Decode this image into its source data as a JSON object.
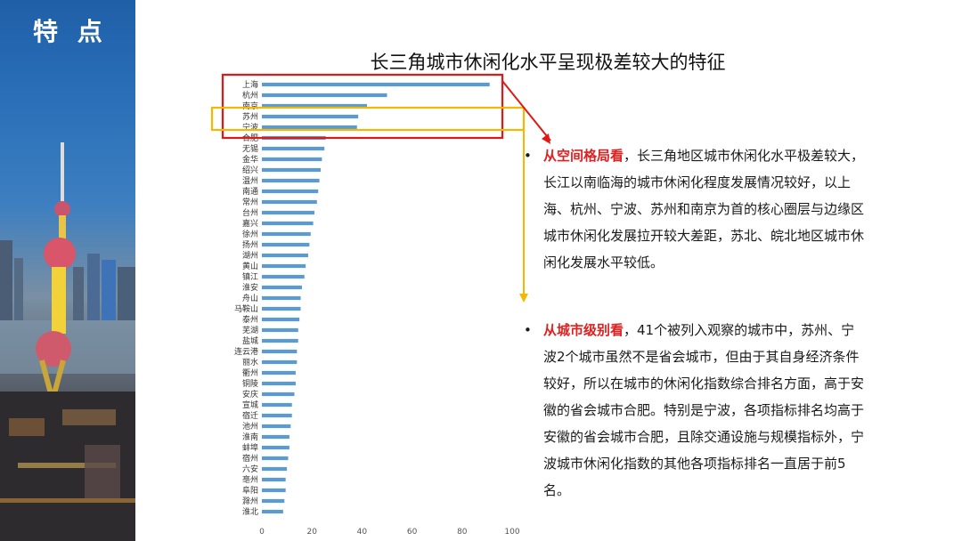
{
  "badge": {
    "label": "特 点"
  },
  "notes": [
    {
      "highlight": "从空间格局看",
      "text": "，长三角地区城市休闲化水平极差较大，长江以南临海的城市休闲化程度发展情况较好，以上海、杭州、宁波、苏州和南京为首的核心圈层与边缘区城市休闲化发展拉开较大差距，苏北、皖北地区城市休闲化发展水平较低。"
    },
    {
      "highlight": "从城市级别看",
      "text": "，41个被列入观察的城市中，苏州、宁波2个城市虽然不是省会城市，但由于其自身经济条件较好，所以在城市的休闲化指数综合排名方面，高于安徽的省会城市合肥。特别是宁波，各项指标排名均高于安徽的省会城市合肥，且除交通设施与规模指标外，宁波城市休闲化指数的其他各项指标排名一直居于前5名。"
    }
  ],
  "colors": {
    "bar": "#5b9bd5",
    "highlight_red": "#e02020",
    "box_red": "#e01818",
    "box_yellow": "#f5b800"
  },
  "chart_data": {
    "type": "bar",
    "orientation": "horizontal",
    "title": "长三角城市休闲化水平呈现极差较大的特征",
    "categories": [
      "上海",
      "杭州",
      "南京",
      "苏州",
      "宁波",
      "合肥",
      "无锡",
      "金华",
      "绍兴",
      "温州",
      "南通",
      "常州",
      "台州",
      "嘉兴",
      "徐州",
      "扬州",
      "湖州",
      "黄山",
      "镇江",
      "淮安",
      "舟山",
      "马鞍山",
      "泰州",
      "芜湖",
      "盐城",
      "连云港",
      "丽水",
      "衢州",
      "铜陵",
      "安庆",
      "宣城",
      "宿迁",
      "池州",
      "淮南",
      "蚌埠",
      "宿州",
      "六安",
      "亳州",
      "阜阳",
      "滁州",
      "淮北"
    ],
    "values": [
      91,
      50,
      42,
      38.5,
      38,
      25.5,
      25,
      24,
      23.5,
      23,
      22.5,
      22,
      21,
      20.5,
      19.5,
      19,
      18.5,
      17.5,
      17,
      16,
      15.5,
      15.5,
      15,
      14.5,
      14.5,
      14,
      14,
      13.5,
      13.5,
      13,
      12,
      12,
      11.5,
      11,
      11,
      10.5,
      10,
      9.5,
      9.5,
      9,
      8.5
    ],
    "xlim": [
      0,
      100
    ],
    "xticks": [
      "0",
      "20",
      "40",
      "60",
      "80",
      "100"
    ],
    "grid": false,
    "legend": "none"
  }
}
